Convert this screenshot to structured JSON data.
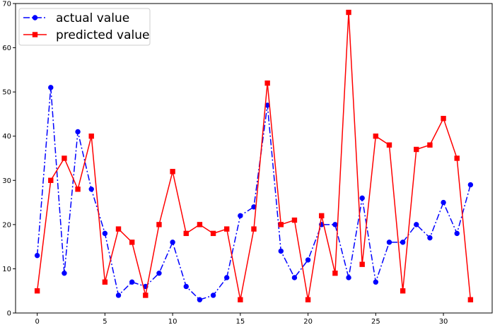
{
  "chart_data": {
    "type": "line",
    "title": "",
    "xlabel": "",
    "ylabel": "",
    "xlim": [
      -1.6,
      33.6
    ],
    "ylim": [
      0,
      70
    ],
    "x_ticks": [
      0,
      5,
      10,
      15,
      20,
      25,
      30
    ],
    "y_ticks": [
      0,
      10,
      20,
      30,
      40,
      50,
      60,
      70
    ],
    "grid": false,
    "legend": "top-left",
    "x": [
      0,
      1,
      2,
      3,
      4,
      5,
      6,
      7,
      8,
      9,
      10,
      11,
      12,
      13,
      14,
      15,
      16,
      17,
      18,
      19,
      20,
      21,
      22,
      23,
      24,
      25,
      26,
      27,
      28,
      29,
      30,
      31,
      32
    ],
    "series": [
      {
        "name": "actual value",
        "color": "#0000ff",
        "marker": "circle",
        "linestyle": "dashdot",
        "values": [
          13,
          51,
          9,
          41,
          28,
          18,
          4,
          7,
          6,
          9,
          16,
          6,
          3,
          4,
          8,
          22,
          24,
          47,
          14,
          8,
          12,
          20,
          20,
          8,
          26,
          7,
          16,
          16,
          20,
          17,
          25,
          18,
          29
        ]
      },
      {
        "name": "predicted value",
        "color": "#ff0000",
        "marker": "square",
        "linestyle": "solid",
        "values": [
          5,
          30,
          35,
          28,
          40,
          7,
          19,
          16,
          4,
          20,
          32,
          18,
          20,
          18,
          19,
          3,
          19,
          52,
          20,
          21,
          3,
          22,
          9,
          68,
          11,
          40,
          38,
          5,
          37,
          38,
          44,
          35,
          3
        ]
      }
    ]
  }
}
